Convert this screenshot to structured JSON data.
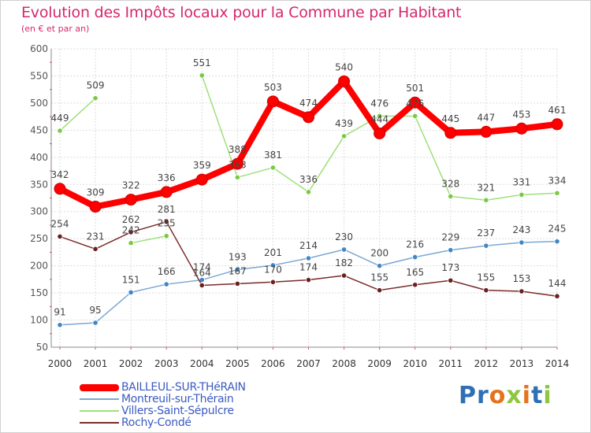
{
  "title": "Evolution des Impôts locaux pour la Commune par Habitant",
  "subtitle": "(en € et par an)",
  "logo": {
    "text": "Proxiti",
    "colors": [
      "#2f6fb5",
      "#2f6fb5",
      "#e6721c",
      "#8dc63f",
      "#e6721c",
      "#2f6fb5",
      "#8dc63f"
    ]
  },
  "chart_data": {
    "type": "line",
    "x": [
      "2000",
      "2001",
      "2002",
      "2003",
      "2004",
      "2005",
      "2006",
      "2007",
      "2008",
      "2009",
      "2010",
      "2011",
      "2012",
      "2013",
      "2014"
    ],
    "ylim": [
      50,
      600
    ],
    "yticks": [
      50,
      100,
      150,
      200,
      250,
      300,
      350,
      400,
      450,
      500,
      550,
      600
    ],
    "grid": true,
    "series": [
      {
        "name": "Villers-Saint-Sépulcre",
        "color": "#9ee07a",
        "marker": "#7ac943",
        "values": [
          449,
          509,
          242,
          255,
          551,
          363,
          381,
          336,
          439,
          476,
          476,
          328,
          321,
          331,
          334
        ],
        "gaps": [
          [
            1,
            2
          ],
          [
            3,
            4
          ]
        ],
        "labels": [
          "449",
          "509",
          "242",
          "255",
          "551",
          "363",
          "381",
          "336",
          "439",
          "476",
          "476",
          "328",
          "321",
          "331",
          "334"
        ]
      },
      {
        "name": "Montreuil-sur-Thérain",
        "color": "#7ba7d3",
        "marker": "#3f86c6",
        "values": [
          91,
          95,
          151,
          166,
          174,
          193,
          201,
          214,
          230,
          200,
          216,
          229,
          237,
          243,
          245
        ],
        "gaps": [],
        "labels": [
          "91",
          "95",
          "151",
          "166",
          "174",
          "193",
          "201",
          "214",
          "230",
          "200",
          "216",
          "229",
          "237",
          "243",
          "245"
        ]
      },
      {
        "name": "Rochy-Condé",
        "color": "#7a2a2a",
        "marker": "#6b1f1f",
        "values": [
          254,
          231,
          262,
          281,
          164,
          167,
          170,
          174,
          182,
          155,
          165,
          173,
          155,
          153,
          144
        ],
        "gaps": [],
        "labels": [
          "254",
          "231",
          "262",
          "281",
          "164",
          "167",
          "170",
          "174",
          "182",
          "155",
          "165",
          "173",
          "155",
          "153",
          "144"
        ]
      },
      {
        "name": "BAILLEUL-SUR-THéRAIN",
        "color": "#ff0000",
        "marker": "#dd0000",
        "values": [
          342,
          309,
          322,
          336,
          359,
          388,
          503,
          474,
          540,
          444,
          501,
          445,
          447,
          453,
          461
        ],
        "gaps": [],
        "labels": [
          "342",
          "309",
          "322",
          "336",
          "359",
          "388",
          "503",
          "474",
          "540",
          "444",
          "501",
          "445",
          "447",
          "453",
          "461"
        ]
      }
    ],
    "legend_order": [
      "BAILLEUL-SUR-THéRAIN",
      "Montreuil-sur-Thérain",
      "Villers-Saint-Sépulcre",
      "Rochy-Condé"
    ]
  }
}
